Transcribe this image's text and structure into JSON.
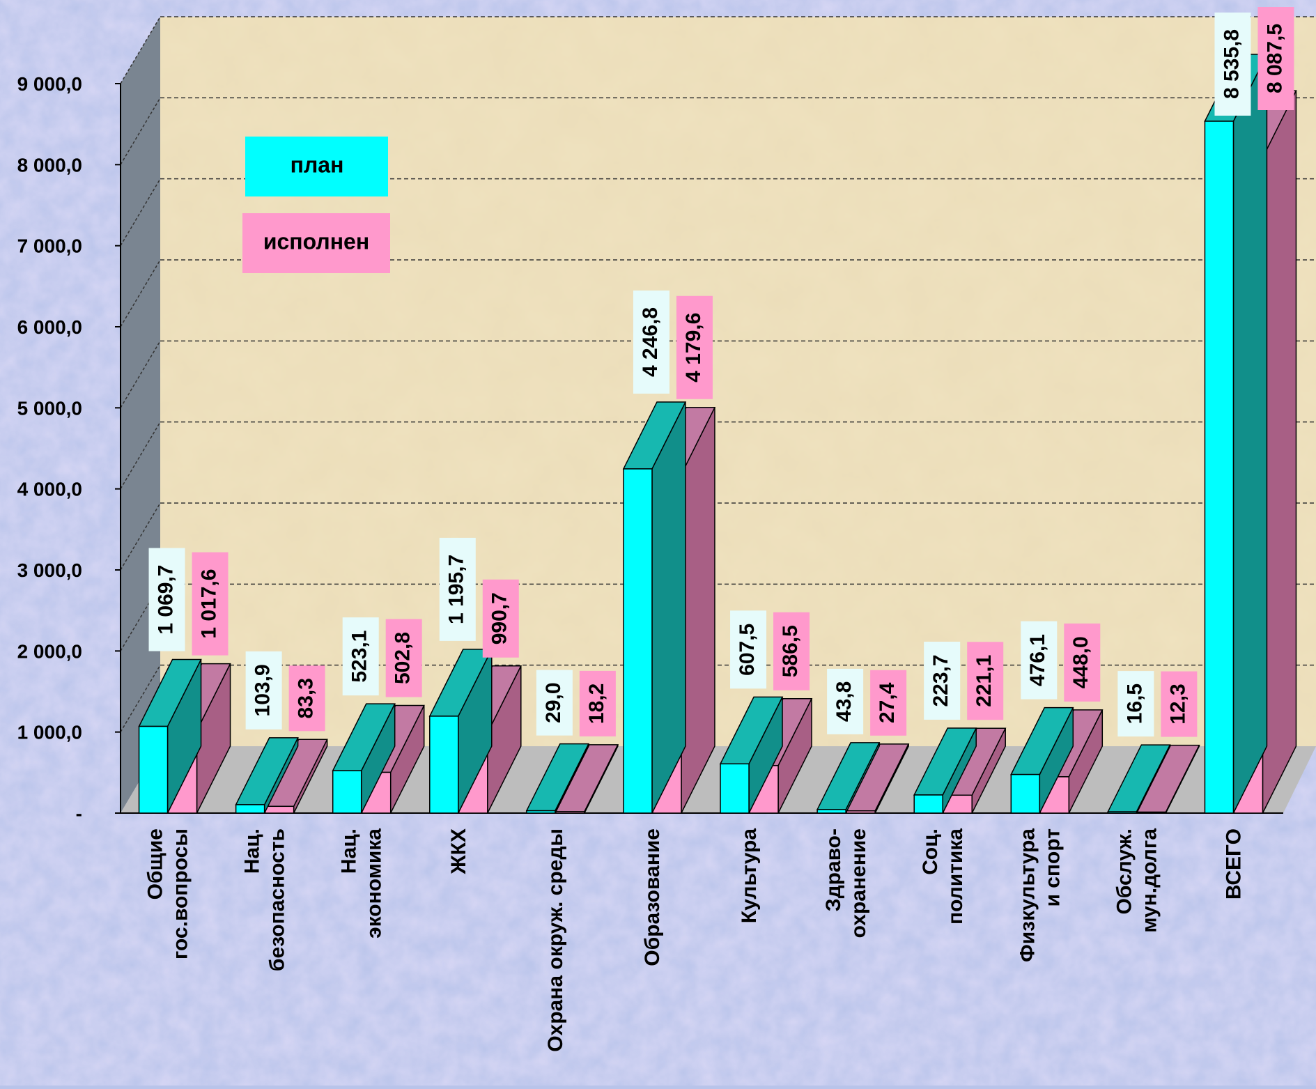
{
  "chart_data": {
    "type": "bar",
    "title": "",
    "xlabel": "",
    "ylabel": "",
    "ylim": [
      0,
      9000
    ],
    "grid": true,
    "legend_placement": "top-left",
    "y_ticks": [
      {
        "value": 0,
        "label": "-"
      },
      {
        "value": 1000,
        "label": "1 000,0"
      },
      {
        "value": 2000,
        "label": "2 000,0"
      },
      {
        "value": 3000,
        "label": "3 000,0"
      },
      {
        "value": 4000,
        "label": "4 000,0"
      },
      {
        "value": 5000,
        "label": "5 000,0"
      },
      {
        "value": 6000,
        "label": "6 000,0"
      },
      {
        "value": 7000,
        "label": "7 000,0"
      },
      {
        "value": 8000,
        "label": "8 000,0"
      },
      {
        "value": 9000,
        "label": "9 000,0"
      }
    ],
    "categories": [
      [
        "Общие",
        "гос.вопросы"
      ],
      [
        "Нац.",
        "безопасность"
      ],
      [
        "Нац.",
        "экономика"
      ],
      [
        "ЖКХ"
      ],
      [
        "Охрана окруж. среды"
      ],
      [
        "Образование"
      ],
      [
        "Культура"
      ],
      [
        "Здраво-",
        "охранение"
      ],
      [
        "Соц.",
        "политика"
      ],
      [
        "Физкультура",
        "и спорт"
      ],
      [
        "Обслуж.",
        "мун.долга"
      ],
      [
        "ВСЕГО"
      ]
    ],
    "series": [
      {
        "name": "план",
        "color": "#00ffff",
        "top_color": "#17b8b0",
        "side_color": "#118f8a",
        "values": [
          1069.7,
          103.9,
          523.1,
          1195.7,
          29.0,
          4246.8,
          607.5,
          43.8,
          223.7,
          476.1,
          16.5,
          8535.8
        ],
        "labels": [
          "1 069,7",
          "103,9",
          "523,1",
          "1 195,7",
          "29,0",
          "4 246,8",
          "607,5",
          "43,8",
          "223,7",
          "476,1",
          "16,5",
          "8 535,8"
        ],
        "label_bg": "#e6fbfb"
      },
      {
        "name": "исполнен",
        "color": "#ff99cc",
        "top_color": "#c27aa3",
        "side_color": "#a85f85",
        "values": [
          1017.6,
          83.3,
          502.8,
          990.7,
          18.2,
          4179.6,
          586.5,
          27.4,
          221.1,
          448.0,
          12.3,
          8087.5
        ],
        "labels": [
          "1 017,6",
          "83,3",
          "502,8",
          "990,7",
          "18,2",
          "4 179,6",
          "586,5",
          "27,4",
          "221,1",
          "448,0",
          "12,3",
          "8 087,5"
        ],
        "label_bg": "#ff99cc"
      }
    ],
    "colors": {
      "wall": "#efe2bf",
      "side_wall": "#7a8591",
      "floor": "#bdbdbd",
      "gridline": "#333333",
      "legend_plan_bg": "#00ffff",
      "legend_exec_bg": "#ff99cc"
    }
  }
}
